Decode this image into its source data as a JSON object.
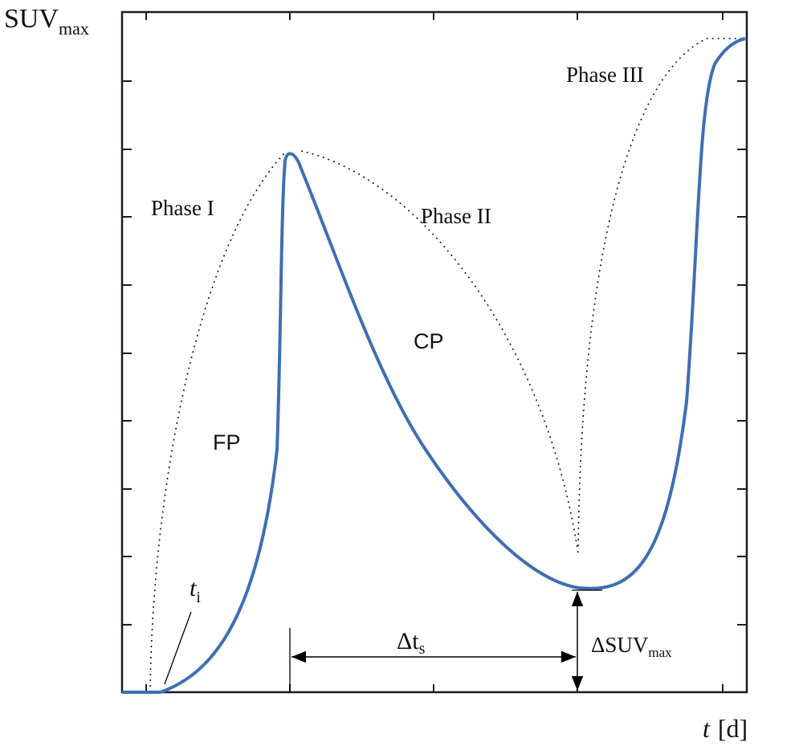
{
  "axes": {
    "y_label": "SUV",
    "y_label_sub": "max",
    "x_label_var": "t",
    "x_label_unit": "[d]"
  },
  "annotations": {
    "phase1": "Phase I",
    "phase2": "Phase II",
    "phase3": "Phase III",
    "cp": "CP",
    "fp": "FP",
    "ti": "t",
    "ti_sub": "i",
    "delta_ts": "Δt",
    "delta_ts_sub": "s",
    "delta_suv": "ΔSUV",
    "delta_suv_sub": "max"
  },
  "colors": {
    "curve": "#3d6fb4",
    "envelope": "#111111",
    "axes": "#1a1a2a"
  }
}
